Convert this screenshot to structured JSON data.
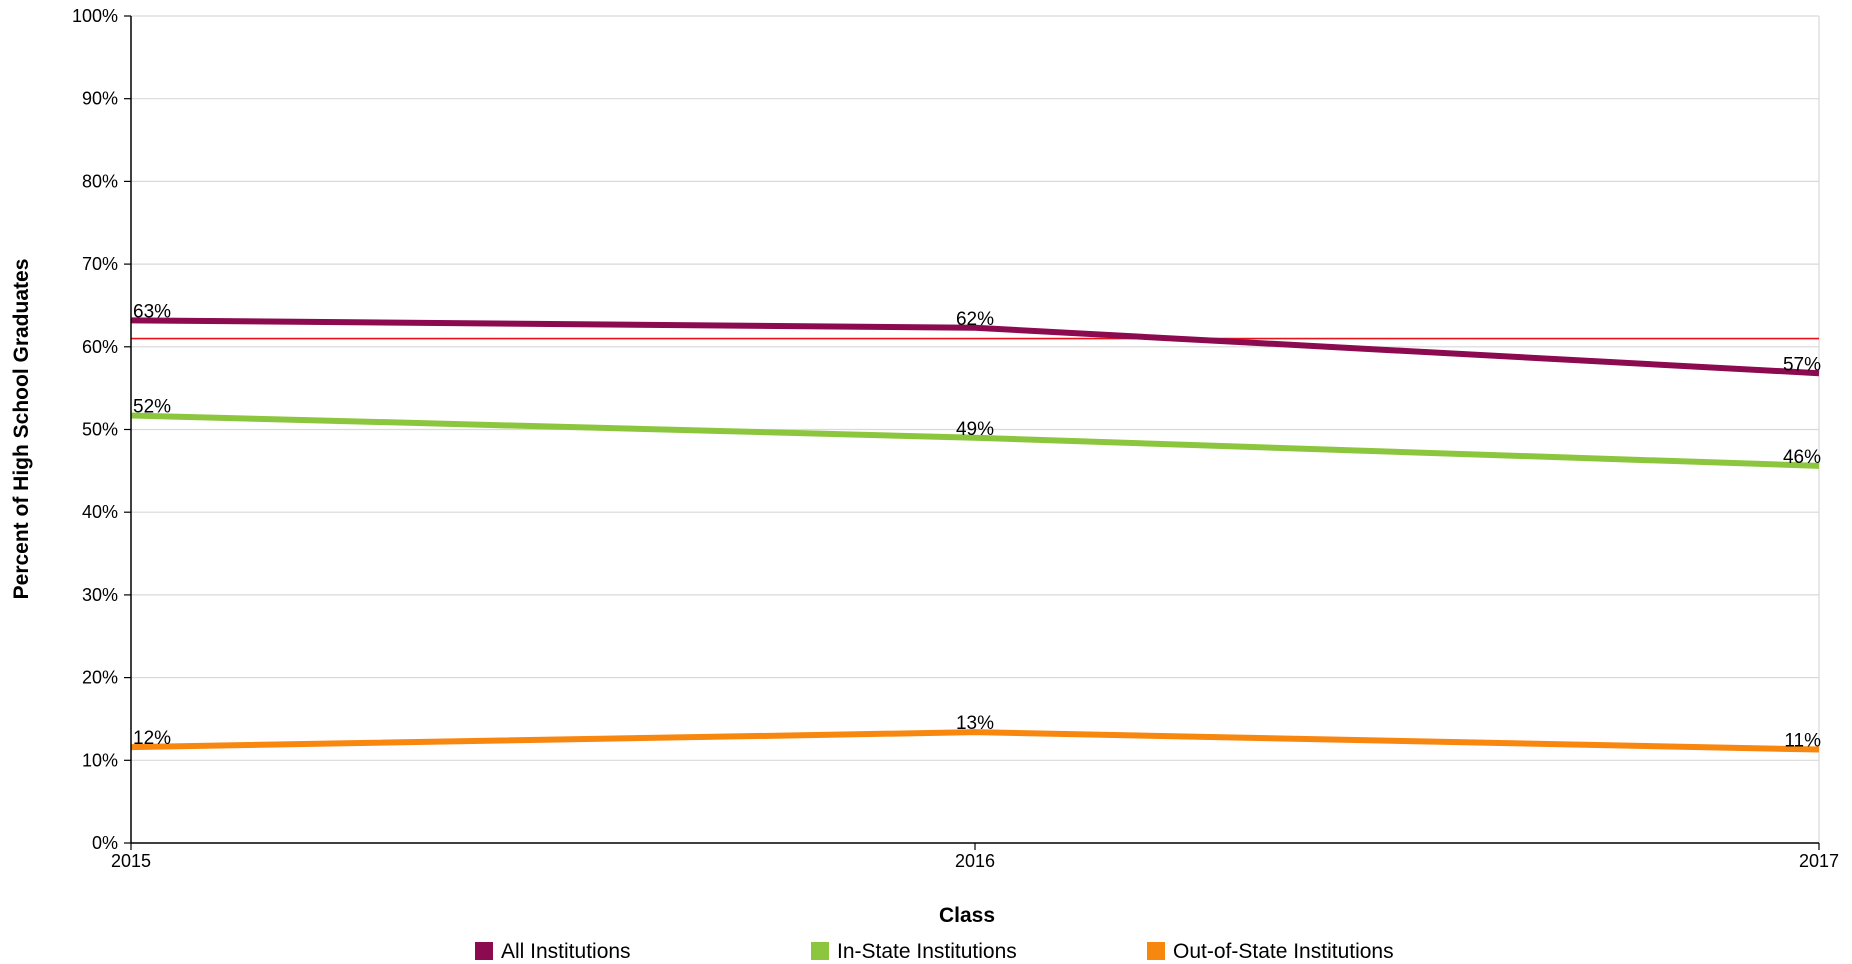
{
  "chart_data": {
    "type": "line",
    "x": [
      "2015",
      "2016",
      "2017"
    ],
    "xlabel": "Class",
    "ylabel": "Percent of High School Graduates",
    "ylim": [
      0,
      100
    ],
    "yticks": [
      0,
      10,
      20,
      30,
      40,
      50,
      60,
      70,
      80,
      90,
      100
    ],
    "ytick_labels": [
      "0%",
      "10%",
      "20%",
      "30%",
      "40%",
      "50%",
      "60%",
      "70%",
      "80%",
      "90%",
      "100%"
    ],
    "grid": true,
    "legend_position": "bottom",
    "reference_line": {
      "value": 61,
      "color": "#e8141b"
    },
    "series": [
      {
        "name": "All Institutions",
        "color": "#8b0a50",
        "values": [
          63.2,
          62.3,
          56.8
        ],
        "labels": [
          "63%",
          "62%",
          "57%"
        ]
      },
      {
        "name": "In-State Institutions",
        "color": "#8cc63f",
        "values": [
          51.7,
          49.0,
          45.6
        ],
        "labels": [
          "52%",
          "49%",
          "46%"
        ]
      },
      {
        "name": "Out-of-State Institutions",
        "color": "#f7870f",
        "values": [
          11.6,
          13.4,
          11.3
        ],
        "labels": [
          "12%",
          "13%",
          "11%"
        ]
      }
    ]
  }
}
